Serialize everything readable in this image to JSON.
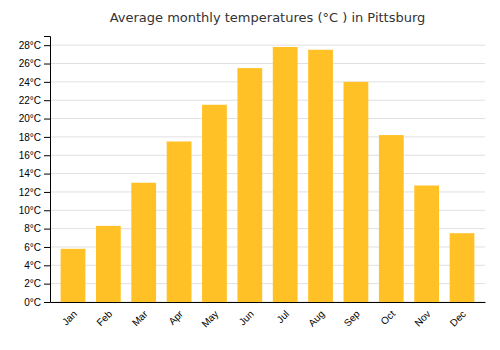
{
  "chart_data": {
    "type": "bar",
    "title": "Average monthly temperatures (°C ) in Pittsburg",
    "categories": [
      "Jan",
      "Feb",
      "Mar",
      "Apr",
      "May",
      "Jun",
      "Jul",
      "Aug",
      "Sep",
      "Oct",
      "Nov",
      "Dec"
    ],
    "values": [
      5.8,
      8.3,
      13.0,
      17.5,
      21.5,
      25.5,
      27.8,
      27.5,
      24.0,
      18.2,
      12.7,
      7.5
    ],
    "color": "#FFC125",
    "ylim": [
      0,
      29
    ],
    "yticks": [
      {
        "value": 0,
        "label": "0°C"
      },
      {
        "value": 2,
        "label": "2°C"
      },
      {
        "value": 4,
        "label": "4°C"
      },
      {
        "value": 6,
        "label": "6°C"
      },
      {
        "value": 8,
        "label": "8°C"
      },
      {
        "value": 10,
        "label": "10°C"
      },
      {
        "value": 12,
        "label": "12°C"
      },
      {
        "value": 14,
        "label": "14°C"
      },
      {
        "value": 16,
        "label": "16°C"
      },
      {
        "value": 18,
        "label": "18°C"
      },
      {
        "value": 20,
        "label": "20°C"
      },
      {
        "value": 22,
        "label": "22°C"
      },
      {
        "value": 24,
        "label": "24°C"
      },
      {
        "value": 26,
        "label": "26°C"
      },
      {
        "value": 28,
        "label": "28°C"
      }
    ],
    "grid": true
  }
}
